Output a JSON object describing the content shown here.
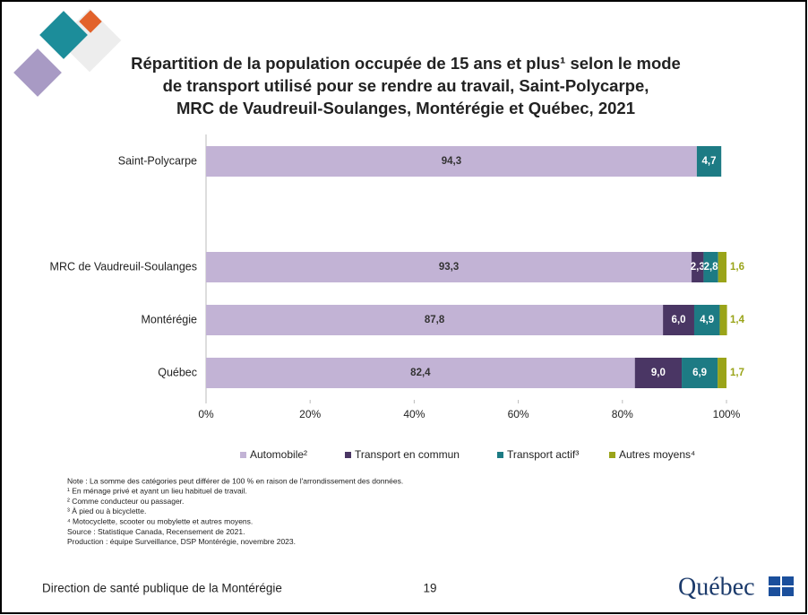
{
  "chart_data": {
    "type": "stacked-bar-horizontal",
    "title_lines": [
      "Répartition de la population occupée de 15 ans et plus¹ selon le mode",
      "de transport utilisé pour se rendre au travail, Saint-Polycarpe,",
      "MRC de Vaudreuil-Soulanges, Montérégie et Québec, 2021"
    ],
    "categories": [
      "Saint-Polycarpe",
      "MRC de Vaudreuil-Soulanges",
      "Montérégie",
      "Québec"
    ],
    "series": [
      {
        "name": "Automobile²",
        "color": "#c2b3d5",
        "values": [
          94.3,
          93.3,
          87.8,
          82.4
        ],
        "value_labels": [
          "94,3",
          "93,3",
          "87,8",
          "82,4"
        ]
      },
      {
        "name": "Transport en commun",
        "color": "#4a3664",
        "values": [
          null,
          2.3,
          6.0,
          9.0
        ],
        "value_labels": [
          null,
          "2,3",
          "6,0",
          "9,0"
        ]
      },
      {
        "name": "Transport actif³",
        "color": "#1d7b84",
        "values": [
          4.7,
          2.8,
          4.9,
          6.9
        ],
        "value_labels": [
          "4,7",
          "2,8",
          "4,9",
          "6,9"
        ]
      },
      {
        "name": "Autres moyens⁴",
        "color": "#9aa419",
        "values": [
          null,
          1.6,
          1.4,
          1.7
        ],
        "value_labels": [
          null,
          "1,6",
          "1,4",
          "1,7"
        ]
      }
    ],
    "xlim": [
      0,
      100
    ],
    "xticks": [
      {
        "value": 0,
        "label": "0%"
      },
      {
        "value": 20,
        "label": "20%"
      },
      {
        "value": 40,
        "label": "40%"
      },
      {
        "value": 60,
        "label": "60%"
      },
      {
        "value": 80,
        "label": "80%"
      },
      {
        "value": 100,
        "label": "100%"
      }
    ],
    "grid": false,
    "legend": "bottom"
  },
  "notes": [
    "Note : La somme des catégories peut différer de 100 % en raison de l'arrondissement des données.",
    "¹ En ménage privé et ayant un lieu habituel de travail.",
    "² Comme conducteur ou passager.",
    "³ À pied ou à bicyclette.",
    "⁴ Motocyclette, scooter ou mobylette et autres moyens.",
    "Source : Statistique Canada, Recensement de 2021.",
    "Production : équipe Surveillance, DSP Montérégie, novembre 2023."
  ],
  "footer": {
    "organization": "Direction de santé publique de la Montérégie",
    "page": "19",
    "logo": "Québec"
  }
}
